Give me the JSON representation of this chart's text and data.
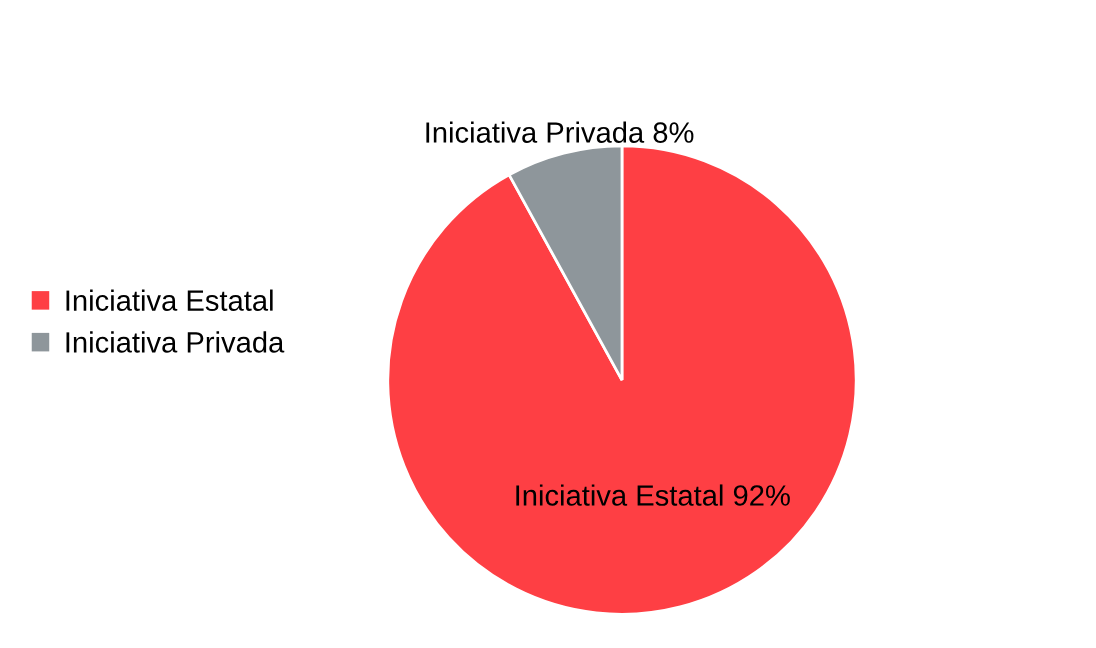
{
  "chart_data": {
    "type": "pie",
    "categories": [
      "Iniciativa Estatal",
      "Iniciativa Privada"
    ],
    "values": [
      92,
      8
    ],
    "colors": [
      "#fe3f44",
      "#8e969b"
    ],
    "value_labels": [
      "Iniciativa Estatal 92%",
      "Iniciativa Privada 8%"
    ],
    "legend": "left"
  }
}
